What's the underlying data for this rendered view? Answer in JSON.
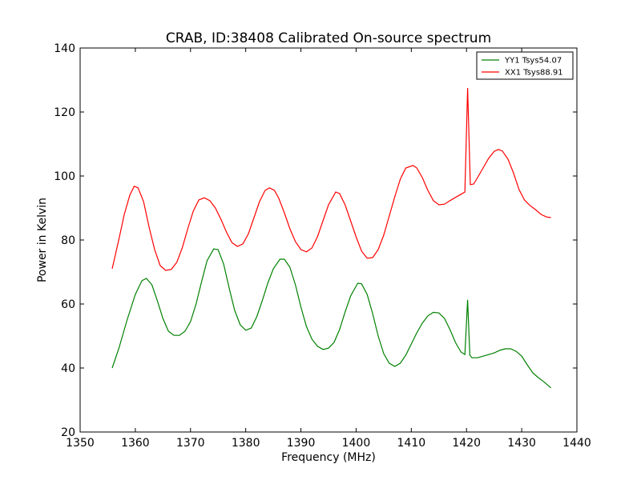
{
  "chart_data": {
    "type": "line",
    "title": "CRAB, ID:38408 Calibrated On-source spectrum",
    "xlabel": "Frequency (MHz)",
    "ylabel": "Power in Kelvin",
    "xlim": [
      1350,
      1440
    ],
    "ylim": [
      20,
      140
    ],
    "xticks": [
      1350,
      1360,
      1370,
      1380,
      1390,
      1400,
      1410,
      1420,
      1430,
      1440
    ],
    "yticks": [
      20,
      40,
      60,
      80,
      100,
      120,
      140
    ],
    "grid": false,
    "legend_position": "top-right",
    "series": [
      {
        "name": "YY1 Tsys54.07",
        "color": "#008000",
        "points": [
          [
            1355.8,
            40
          ],
          [
            1357,
            46
          ],
          [
            1358.5,
            55
          ],
          [
            1360,
            63
          ],
          [
            1361.2,
            67.3
          ],
          [
            1362,
            68
          ],
          [
            1363,
            66
          ],
          [
            1364,
            61
          ],
          [
            1365,
            55.5
          ],
          [
            1366,
            51.5
          ],
          [
            1367,
            50.2
          ],
          [
            1368,
            50.2
          ],
          [
            1369,
            51.5
          ],
          [
            1370,
            54.5
          ],
          [
            1371,
            60
          ],
          [
            1372,
            67
          ],
          [
            1373,
            73.5
          ],
          [
            1374.2,
            77.2
          ],
          [
            1375,
            77
          ],
          [
            1376,
            72.5
          ],
          [
            1377,
            65
          ],
          [
            1378,
            58
          ],
          [
            1379,
            53.5
          ],
          [
            1380,
            51.8
          ],
          [
            1381,
            52.5
          ],
          [
            1382,
            56
          ],
          [
            1383,
            61
          ],
          [
            1384,
            66.5
          ],
          [
            1385,
            71
          ],
          [
            1386.2,
            74
          ],
          [
            1387,
            74
          ],
          [
            1388,
            71.5
          ],
          [
            1389,
            66
          ],
          [
            1390,
            59
          ],
          [
            1391,
            53
          ],
          [
            1392,
            49
          ],
          [
            1393,
            46.8
          ],
          [
            1394,
            45.8
          ],
          [
            1395,
            46.2
          ],
          [
            1396,
            48
          ],
          [
            1397,
            52
          ],
          [
            1398,
            57.5
          ],
          [
            1399,
            62.5
          ],
          [
            1400.3,
            66.5
          ],
          [
            1401,
            66.3
          ],
          [
            1402,
            63
          ],
          [
            1403,
            57
          ],
          [
            1404,
            50
          ],
          [
            1405,
            44.5
          ],
          [
            1406,
            41.5
          ],
          [
            1407,
            40.5
          ],
          [
            1408,
            41.5
          ],
          [
            1409,
            44
          ],
          [
            1410,
            47.5
          ],
          [
            1411,
            51
          ],
          [
            1412,
            54
          ],
          [
            1413,
            56.3
          ],
          [
            1414,
            57.4
          ],
          [
            1415,
            57.2
          ],
          [
            1416,
            55.5
          ],
          [
            1417,
            52
          ],
          [
            1418,
            48
          ],
          [
            1419,
            45
          ],
          [
            1419.7,
            44.2
          ],
          [
            1420.2,
            61.3
          ],
          [
            1420.6,
            44
          ],
          [
            1421,
            43.2
          ],
          [
            1422,
            43.2
          ],
          [
            1423,
            43.7
          ],
          [
            1424,
            44.2
          ],
          [
            1425,
            44.7
          ],
          [
            1426,
            45.5
          ],
          [
            1427,
            46
          ],
          [
            1428,
            46
          ],
          [
            1429,
            45.2
          ],
          [
            1430,
            43.7
          ],
          [
            1431,
            41
          ],
          [
            1432,
            38.5
          ],
          [
            1433,
            37
          ],
          [
            1434,
            35.7
          ],
          [
            1435.3,
            33.8
          ]
        ]
      },
      {
        "name": "XX1 Tsys88.91",
        "color": "#ff0000",
        "points": [
          [
            1355.8,
            71
          ],
          [
            1357,
            80
          ],
          [
            1358,
            88
          ],
          [
            1359,
            94
          ],
          [
            1359.8,
            96.8
          ],
          [
            1360.5,
            96.3
          ],
          [
            1361.5,
            92
          ],
          [
            1362.5,
            84
          ],
          [
            1363.5,
            77
          ],
          [
            1364.5,
            72
          ],
          [
            1365.5,
            70.5
          ],
          [
            1366.5,
            70.8
          ],
          [
            1367.5,
            73
          ],
          [
            1368.5,
            77.5
          ],
          [
            1369.5,
            83.5
          ],
          [
            1370.5,
            89
          ],
          [
            1371.5,
            92.5
          ],
          [
            1372.5,
            93.2
          ],
          [
            1373.5,
            92.3
          ],
          [
            1374.5,
            90
          ],
          [
            1375.5,
            86.5
          ],
          [
            1376.5,
            82.5
          ],
          [
            1377.5,
            79.2
          ],
          [
            1378.5,
            78
          ],
          [
            1379.5,
            78.8
          ],
          [
            1380.5,
            82
          ],
          [
            1381.5,
            87
          ],
          [
            1382.5,
            92
          ],
          [
            1383.5,
            95.5
          ],
          [
            1384.3,
            96.3
          ],
          [
            1385.2,
            95.5
          ],
          [
            1386,
            93
          ],
          [
            1387,
            88.5
          ],
          [
            1388,
            83.5
          ],
          [
            1389,
            79.5
          ],
          [
            1390,
            77
          ],
          [
            1391,
            76.3
          ],
          [
            1392,
            77.5
          ],
          [
            1393,
            81
          ],
          [
            1394,
            86
          ],
          [
            1395,
            91
          ],
          [
            1396.3,
            95
          ],
          [
            1397,
            94.5
          ],
          [
            1398,
            91
          ],
          [
            1399,
            86
          ],
          [
            1400,
            81
          ],
          [
            1401,
            76.5
          ],
          [
            1402,
            74.3
          ],
          [
            1403,
            74.5
          ],
          [
            1404,
            77
          ],
          [
            1405,
            81.5
          ],
          [
            1406,
            87.5
          ],
          [
            1407,
            93.5
          ],
          [
            1408,
            99
          ],
          [
            1409,
            102.5
          ],
          [
            1410.3,
            103.3
          ],
          [
            1411,
            102.5
          ],
          [
            1412,
            99.5
          ],
          [
            1413,
            95.5
          ],
          [
            1414,
            92.3
          ],
          [
            1415,
            91
          ],
          [
            1416,
            91.2
          ],
          [
            1417,
            92.3
          ],
          [
            1418,
            93.3
          ],
          [
            1419,
            94.3
          ],
          [
            1419.7,
            95
          ],
          [
            1420.2,
            127.5
          ],
          [
            1420.7,
            97.3
          ],
          [
            1421.3,
            97.5
          ],
          [
            1422,
            99.5
          ],
          [
            1423,
            102.5
          ],
          [
            1424,
            105.5
          ],
          [
            1425,
            107.7
          ],
          [
            1425.8,
            108.3
          ],
          [
            1426.5,
            107.8
          ],
          [
            1427.5,
            105.3
          ],
          [
            1428.5,
            101
          ],
          [
            1429.5,
            95.8
          ],
          [
            1430.5,
            92.5
          ],
          [
            1431.5,
            90.8
          ],
          [
            1432.5,
            89.5
          ],
          [
            1433.5,
            88
          ],
          [
            1434.5,
            87.2
          ],
          [
            1435.3,
            87
          ]
        ]
      }
    ]
  }
}
